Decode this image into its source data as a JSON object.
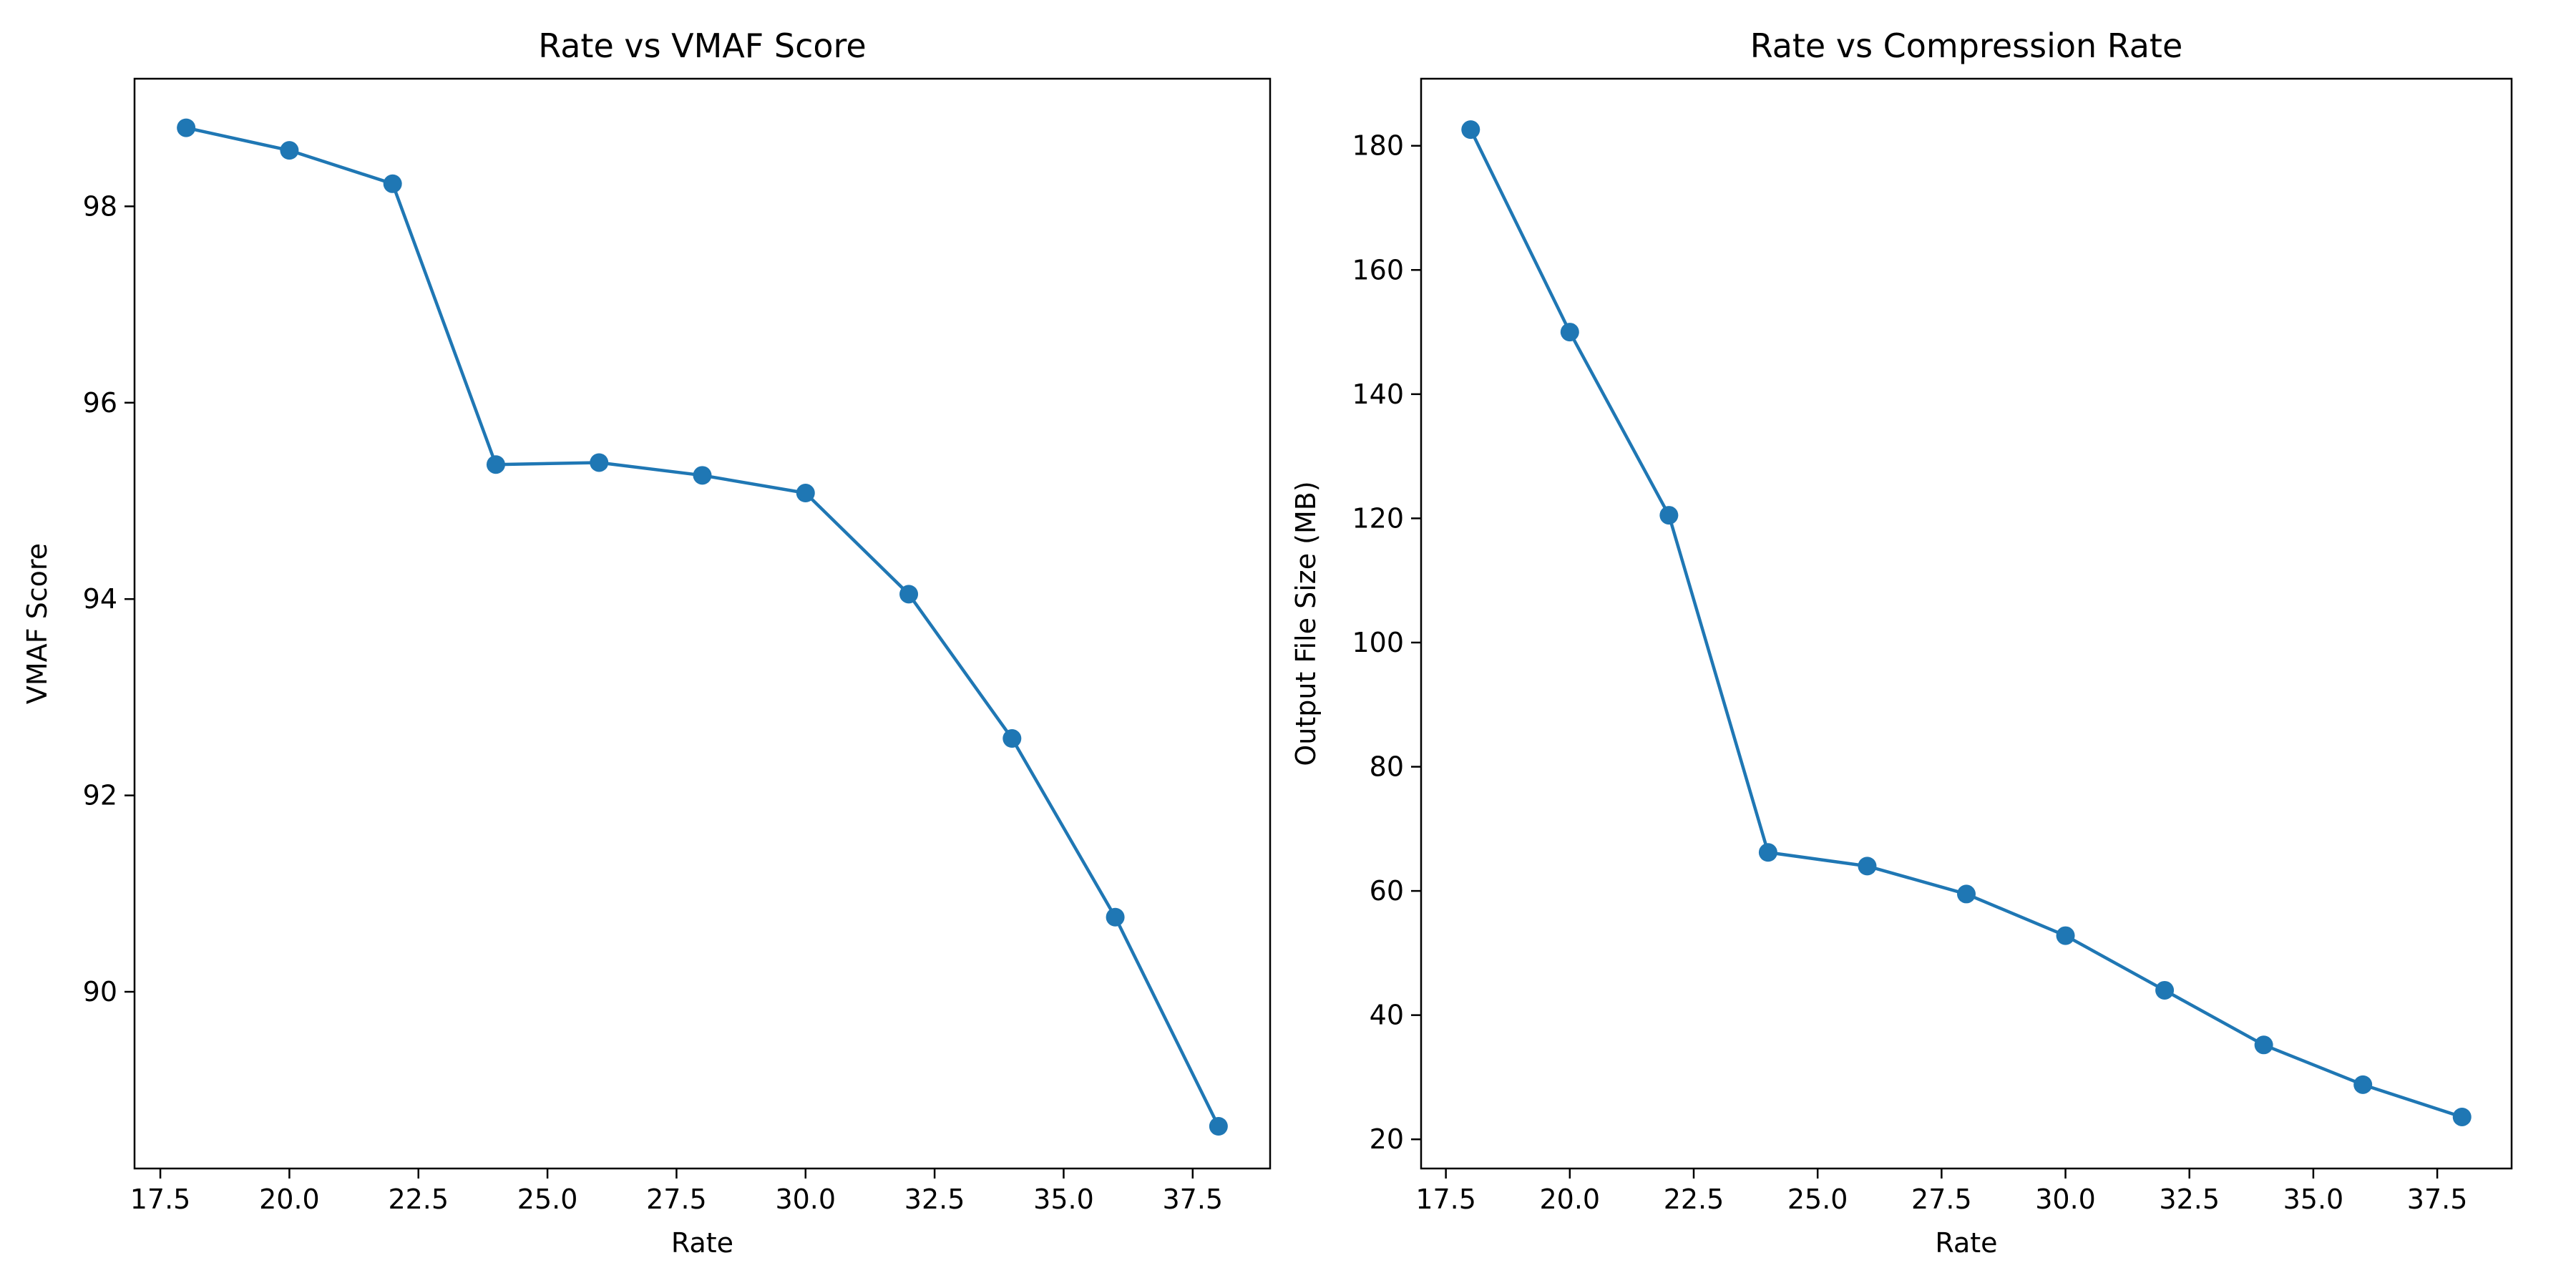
{
  "chart_data": [
    {
      "type": "line",
      "title": "Rate vs VMAF Score",
      "xlabel": "Rate",
      "ylabel": "VMAF Score",
      "xlim": [
        17.0,
        39.0
      ],
      "ylim": [
        88.2,
        99.3
      ],
      "xticks": [
        17.5,
        20.0,
        22.5,
        25.0,
        27.5,
        30.0,
        32.5,
        35.0,
        37.5
      ],
      "xtick_labels": [
        "17.5",
        "20.0",
        "22.5",
        "25.0",
        "27.5",
        "30.0",
        "32.5",
        "35.0",
        "37.5"
      ],
      "yticks": [
        90,
        92,
        94,
        96,
        98
      ],
      "ytick_labels": [
        "90",
        "92",
        "94",
        "96",
        "98"
      ],
      "grid": false,
      "color": "#1f77b4",
      "series": [
        {
          "x": [
            18,
            20,
            22,
            24,
            26,
            28,
            30,
            32,
            34,
            36,
            38
          ],
          "y": [
            98.8,
            98.57,
            98.23,
            95.37,
            95.39,
            95.26,
            95.08,
            94.05,
            92.58,
            90.76,
            88.63
          ]
        }
      ]
    },
    {
      "type": "line",
      "title": "Rate vs Compression Rate",
      "xlabel": "Rate",
      "ylabel": "Output File Size (MB)",
      "xlim": [
        17.0,
        39.0
      ],
      "ylim": [
        15.3,
        190.8
      ],
      "xticks": [
        17.5,
        20.0,
        22.5,
        25.0,
        27.5,
        30.0,
        32.5,
        35.0,
        37.5
      ],
      "xtick_labels": [
        "17.5",
        "20.0",
        "22.5",
        "25.0",
        "27.5",
        "30.0",
        "32.5",
        "35.0",
        "37.5"
      ],
      "yticks": [
        20,
        40,
        60,
        80,
        100,
        120,
        140,
        160,
        180
      ],
      "ytick_labels": [
        "20",
        "40",
        "60",
        "80",
        "100",
        "120",
        "140",
        "160",
        "180"
      ],
      "grid": false,
      "color": "#1f77b4",
      "series": [
        {
          "x": [
            18,
            20,
            22,
            24,
            26,
            28,
            30,
            32,
            34,
            36,
            38
          ],
          "y": [
            182.6,
            150.0,
            120.5,
            66.2,
            64.0,
            59.5,
            52.8,
            44.0,
            35.2,
            28.8,
            23.6
          ]
        }
      ]
    }
  ]
}
